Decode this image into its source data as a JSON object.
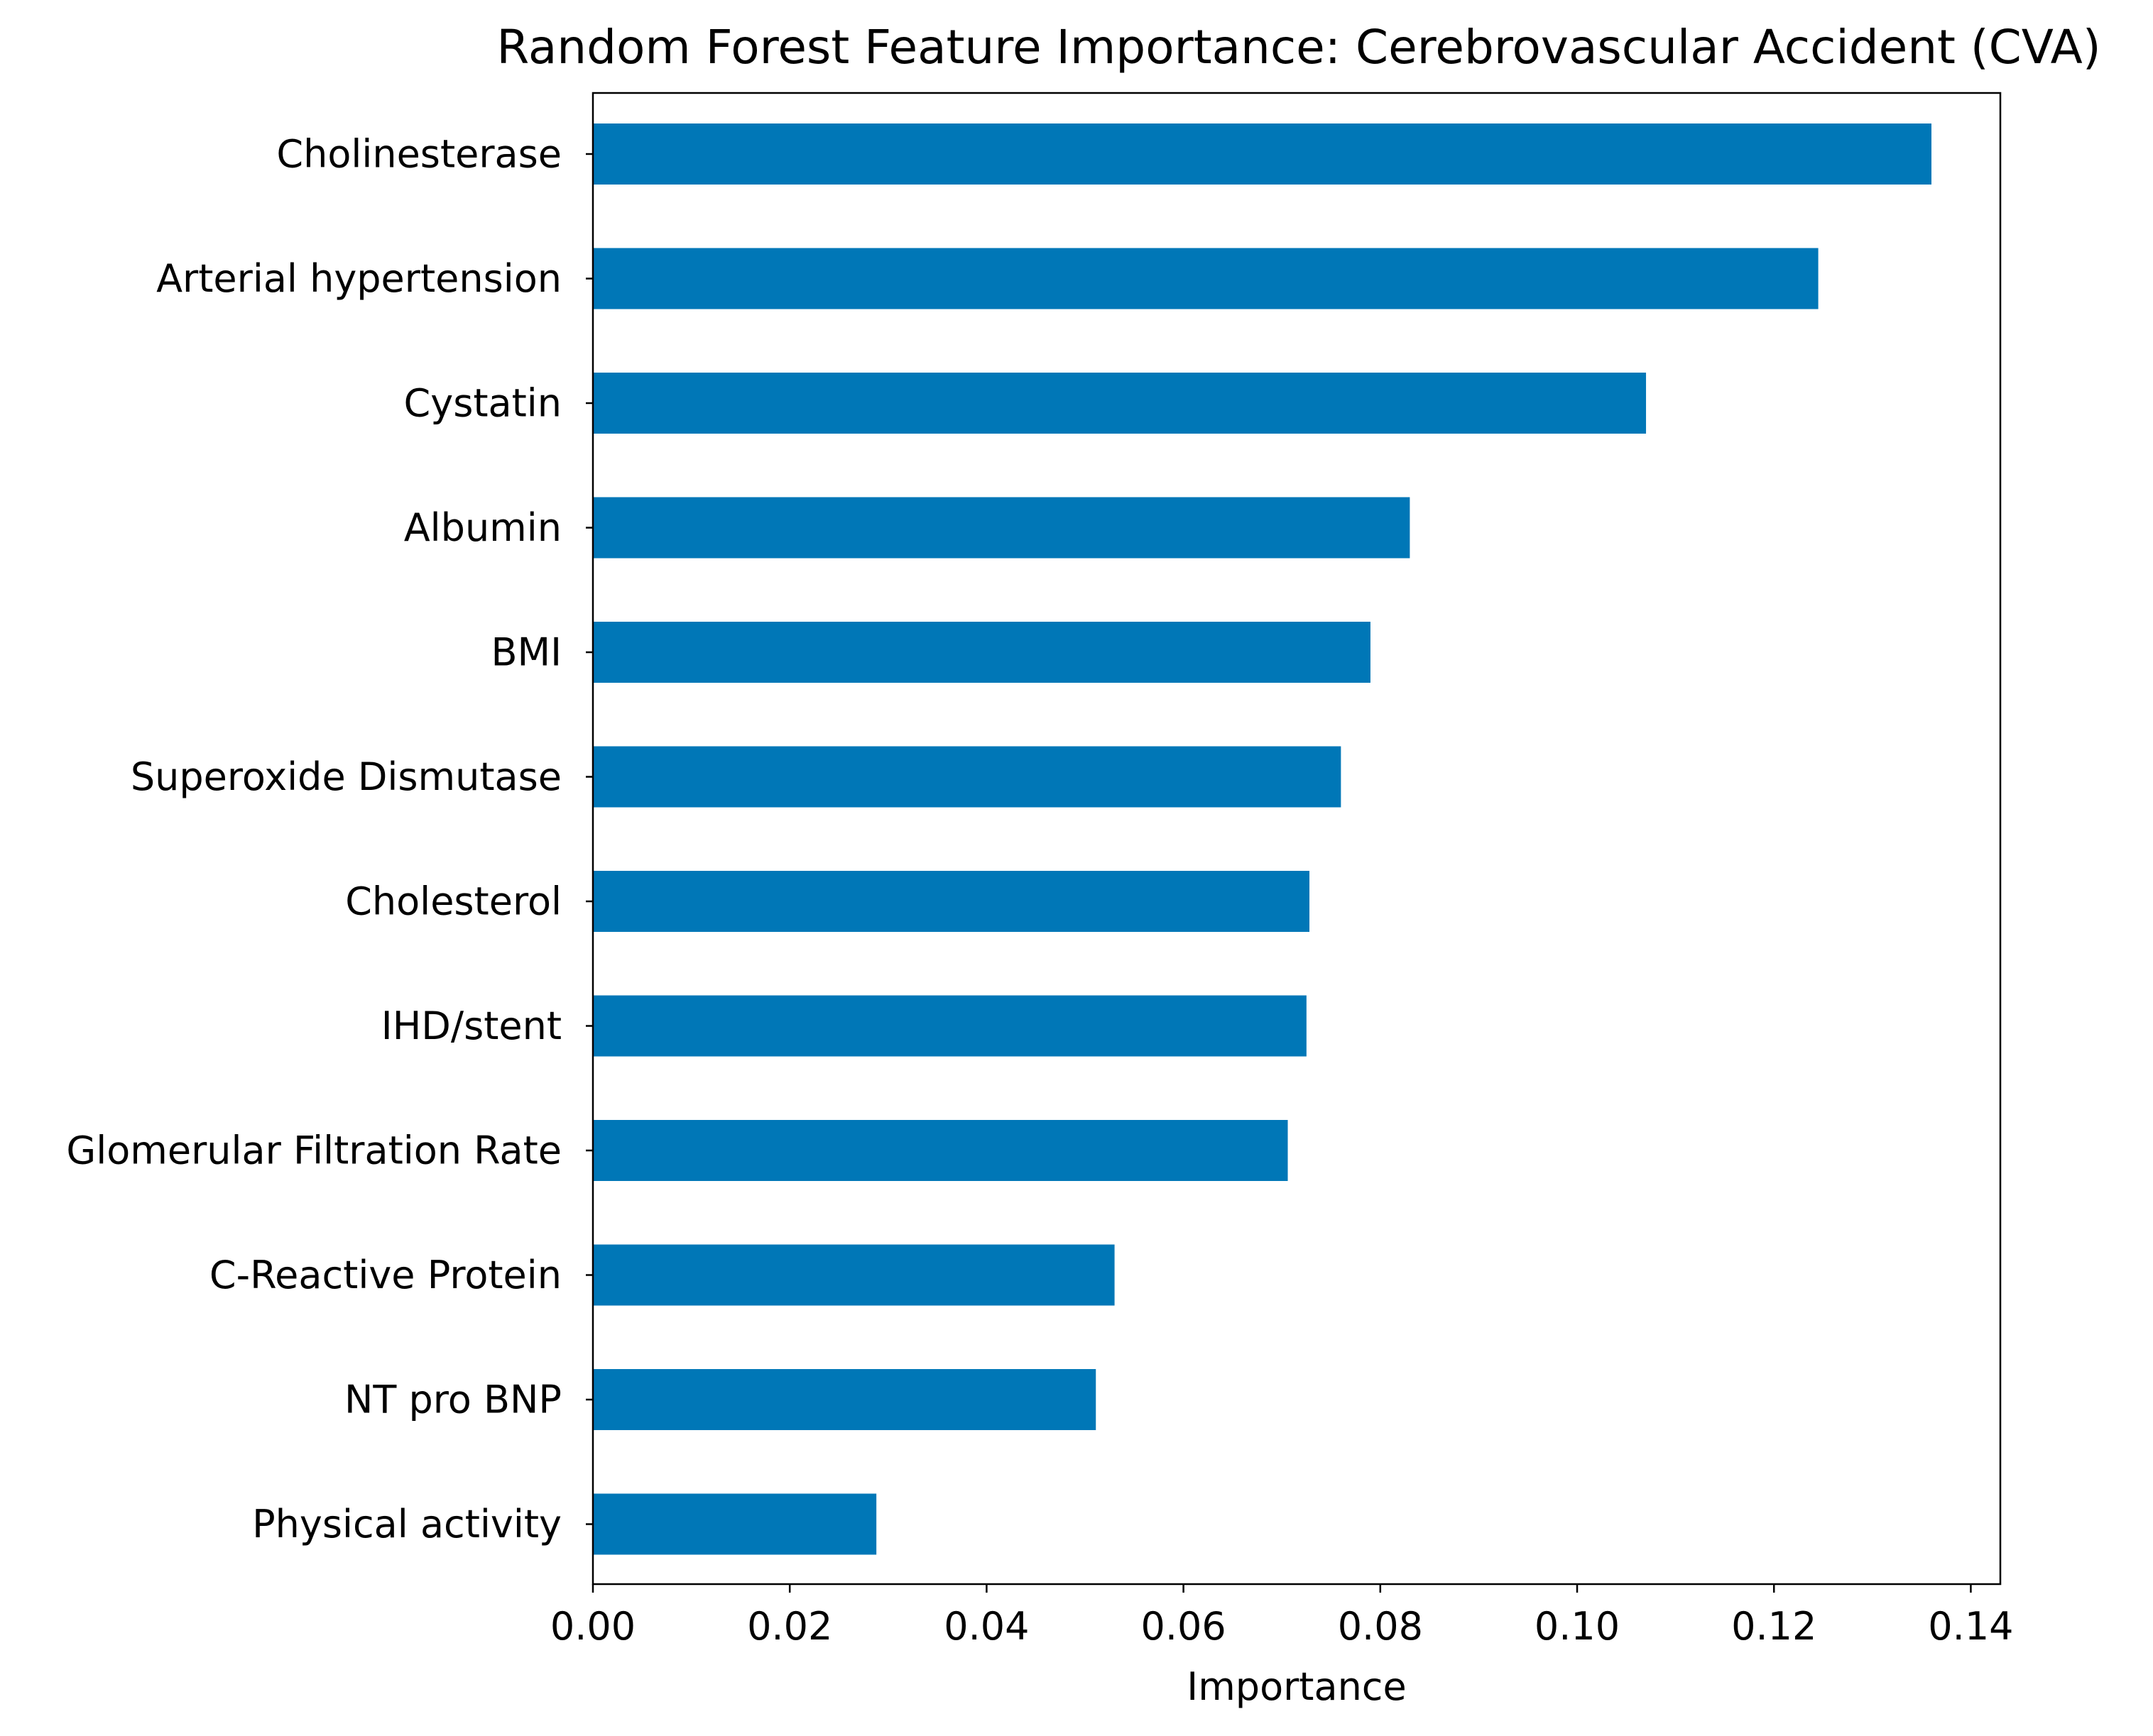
{
  "chart_data": {
    "type": "bar",
    "orientation": "horizontal",
    "title": "Random Forest Feature Importance: Cerebrovascular Accident (CVA)",
    "xlabel": "Importance",
    "ylabel": "",
    "xlim": [
      0,
      0.143
    ],
    "xticks": [
      0.0,
      0.02,
      0.04,
      0.06,
      0.08,
      0.1,
      0.12,
      0.14
    ],
    "xtick_labels": [
      "0.00",
      "0.02",
      "0.04",
      "0.06",
      "0.08",
      "0.10",
      "0.12",
      "0.14"
    ],
    "categories": [
      "Cholinesterase",
      "Arterial hypertension",
      "Cystatin",
      "Albumin",
      "BMI",
      "Superoxide Dismutase",
      "Cholesterol",
      "IHD/stent",
      "Glomerular Filtration Rate",
      "C-Reactive Protein",
      "NT pro BNP",
      "Physical activity"
    ],
    "values": [
      0.136,
      0.1245,
      0.107,
      0.083,
      0.079,
      0.076,
      0.0728,
      0.0725,
      0.0706,
      0.053,
      0.0511,
      0.0288
    ],
    "bar_color": "#0077b7",
    "grid": false,
    "legend": "none"
  }
}
